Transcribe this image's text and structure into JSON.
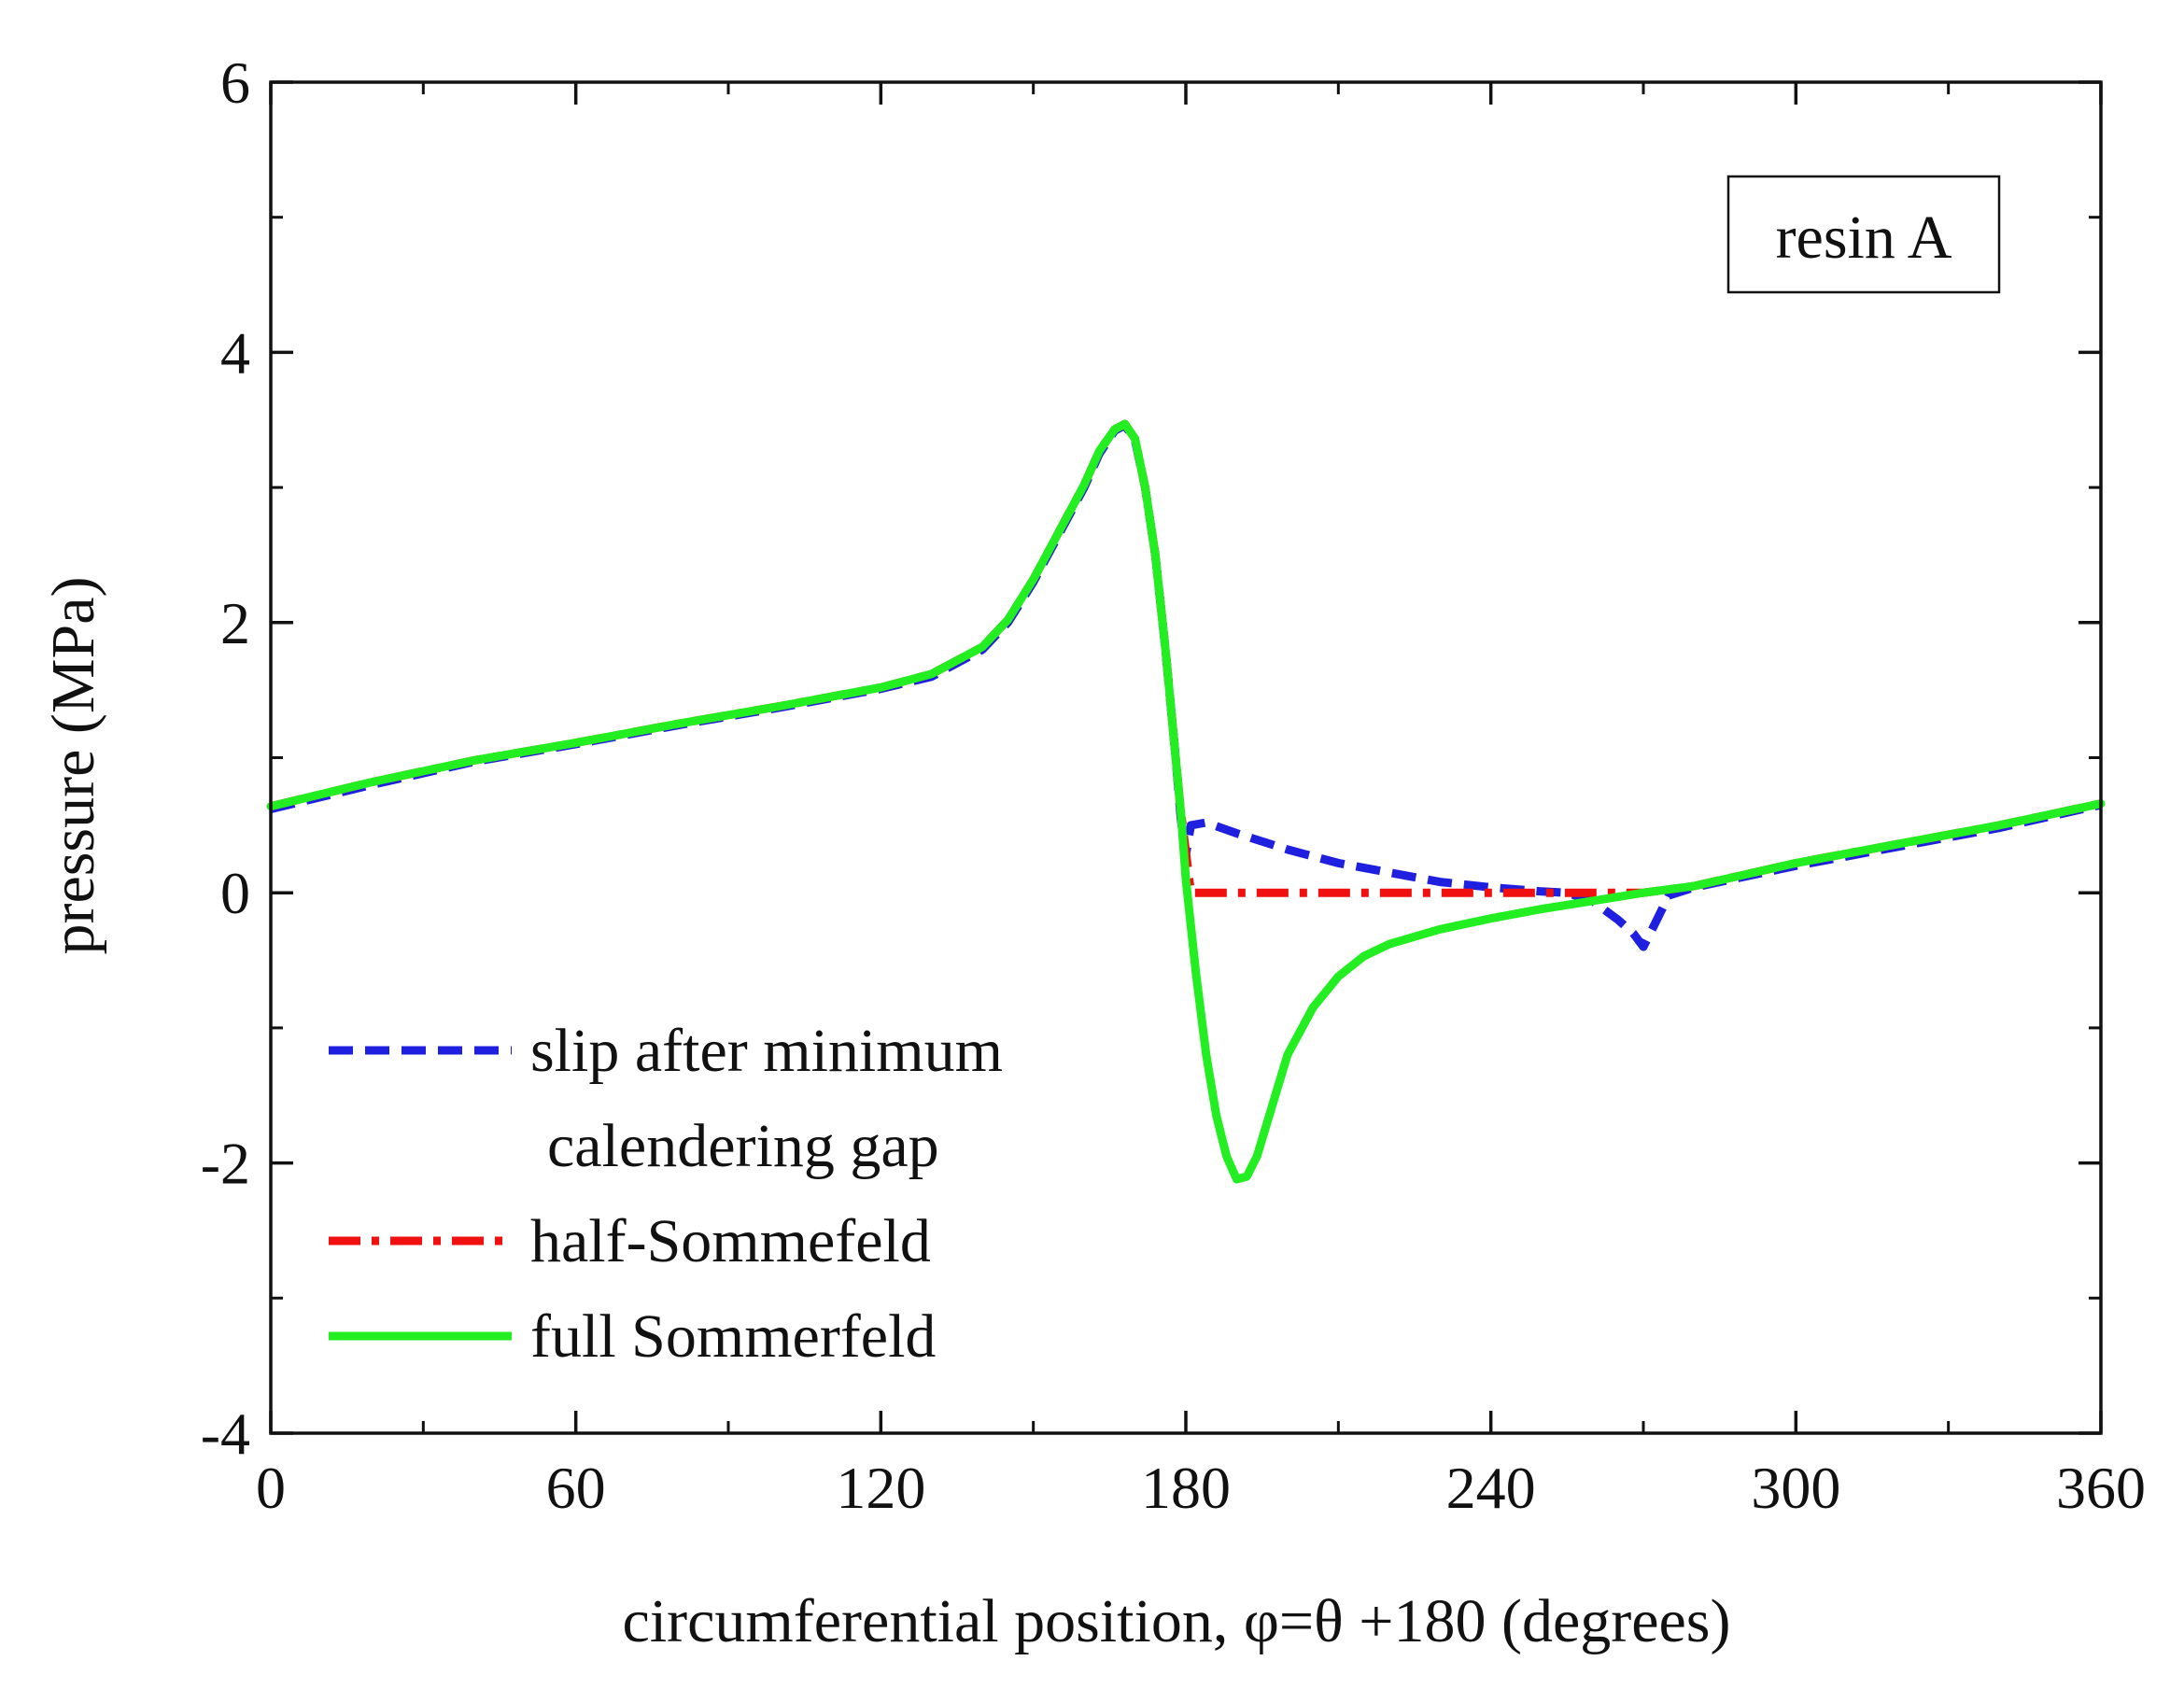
{
  "chart_data": {
    "type": "line",
    "title": "",
    "xlabel": "circumferential position, φ=θ +180 (degrees)",
    "ylabel": "pressure (MPa)",
    "xlim": [
      0,
      360
    ],
    "ylim": [
      -4,
      6
    ],
    "x_ticks": [
      0,
      60,
      120,
      180,
      240,
      300,
      360
    ],
    "y_ticks": [
      -4,
      -2,
      0,
      2,
      4,
      6
    ],
    "x_tick_labels": [
      "0",
      "60",
      "120",
      "180",
      "240",
      "300",
      "360"
    ],
    "y_tick_labels": [
      "-4",
      "-2",
      "0",
      "2",
      "4",
      "6"
    ],
    "x_minor_step": 30,
    "y_minor_step": 1,
    "grid": false,
    "legend_position": "bottom-left",
    "annotation": "resin A",
    "series": [
      {
        "name": "slip after minimum\ncalendering gap",
        "color": "#1f1fe0",
        "style": "dashed",
        "x": [
          0,
          20,
          40,
          60,
          80,
          100,
          120,
          130,
          140,
          145,
          150,
          155,
          160,
          163,
          166,
          168,
          170,
          172,
          174,
          176,
          178,
          179,
          180,
          181,
          184,
          190,
          200,
          210,
          220,
          230,
          240,
          250,
          255,
          260,
          265,
          268,
          270,
          272,
          275,
          280,
          300,
          320,
          340,
          360
        ],
        "y": [
          0.62,
          0.8,
          0.97,
          1.1,
          1.24,
          1.37,
          1.51,
          1.6,
          1.8,
          2.0,
          2.3,
          2.65,
          3.0,
          3.25,
          3.42,
          3.46,
          3.35,
          3.0,
          2.5,
          1.8,
          1.0,
          0.55,
          0.28,
          0.5,
          0.52,
          0.44,
          0.32,
          0.22,
          0.15,
          0.08,
          0.04,
          0.01,
          0.0,
          -0.06,
          -0.2,
          -0.3,
          -0.4,
          -0.25,
          -0.02,
          0.04,
          0.2,
          0.34,
          0.48,
          0.65
        ]
      },
      {
        "name": "half-Sommefeld",
        "color": "#f01010",
        "style": "dashdot",
        "x": [
          0,
          20,
          40,
          60,
          80,
          100,
          120,
          130,
          140,
          145,
          150,
          155,
          160,
          163,
          166,
          168,
          170,
          172,
          174,
          176,
          178,
          179,
          180,
          181,
          200,
          220,
          240,
          260,
          270,
          280,
          300,
          320,
          340,
          360
        ],
        "y": [
          0.64,
          0.82,
          0.98,
          1.11,
          1.25,
          1.38,
          1.52,
          1.62,
          1.82,
          2.02,
          2.32,
          2.67,
          3.02,
          3.27,
          3.43,
          3.47,
          3.36,
          3.0,
          2.5,
          1.8,
          1.0,
          0.6,
          0.3,
          0.0,
          0.0,
          0.0,
          0.0,
          0.0,
          0.0,
          0.05,
          0.22,
          0.36,
          0.5,
          0.66
        ]
      },
      {
        "name": "full Sommerfeld",
        "color": "#22ee22",
        "style": "solid",
        "x": [
          0,
          20,
          40,
          60,
          80,
          100,
          120,
          130,
          140,
          145,
          150,
          155,
          160,
          163,
          166,
          168,
          170,
          172,
          174,
          176,
          178,
          179,
          180,
          182,
          184,
          186,
          188,
          190,
          192,
          194,
          196,
          198,
          200,
          205,
          210,
          215,
          220,
          230,
          240,
          250,
          260,
          270,
          280,
          300,
          320,
          340,
          360
        ],
        "y": [
          0.64,
          0.82,
          0.98,
          1.11,
          1.25,
          1.38,
          1.52,
          1.62,
          1.82,
          2.02,
          2.32,
          2.67,
          3.02,
          3.27,
          3.43,
          3.47,
          3.36,
          3.0,
          2.5,
          1.8,
          1.0,
          0.6,
          0.1,
          -0.6,
          -1.2,
          -1.65,
          -1.95,
          -2.12,
          -2.1,
          -1.95,
          -1.7,
          -1.45,
          -1.2,
          -0.85,
          -0.62,
          -0.47,
          -0.38,
          -0.27,
          -0.19,
          -0.12,
          -0.06,
          0.0,
          0.05,
          0.22,
          0.36,
          0.5,
          0.66
        ]
      }
    ]
  }
}
